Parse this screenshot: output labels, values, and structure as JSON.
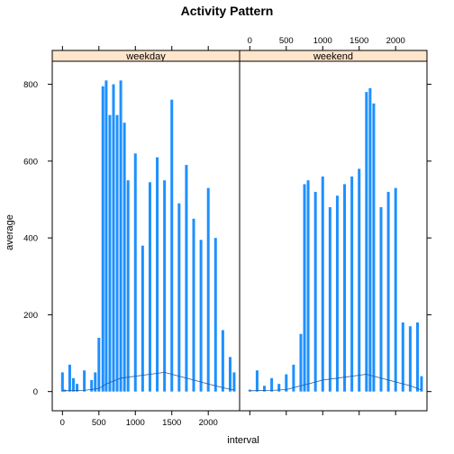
{
  "chart_data": {
    "type": "bar",
    "title": "Activity Pattern",
    "xlabel": "interval",
    "ylabel": "average",
    "xlim": [
      -140,
      2430
    ],
    "ylim": [
      -50,
      860
    ],
    "x_ticks": [
      0,
      500,
      1000,
      1500,
      2000
    ],
    "y_ticks": [
      0,
      200,
      400,
      600,
      800
    ],
    "bar_color": "#1e90ff",
    "strip_color": "#ffe5cc",
    "panels": [
      {
        "name": "weekday",
        "series": [
          {
            "x": [
              0,
              30,
              100,
              150,
              200,
              300,
              400,
              450,
              500,
              555,
              600,
              650,
              700,
              750,
              800,
              850,
              900,
              1000,
              1100,
              1200,
              1300,
              1400,
              1500,
              1600,
              1700,
              1800,
              1900,
              2000,
              2100,
              2200,
              2300,
              2355
            ],
            "values": [
              50,
              5,
              70,
              35,
              20,
              55,
              30,
              50,
              140,
              795,
              810,
              720,
              800,
              720,
              810,
              700,
              550,
              620,
              380,
              545,
              610,
              550,
              760,
              490,
              590,
              450,
              395,
              530,
              400,
              160,
              90,
              50
            ]
          }
        ],
        "line": {
          "x": [
            0,
            300,
            500,
            600,
            800,
            1000,
            1200,
            1400,
            1600,
            1800,
            2000,
            2200,
            2355
          ],
          "values": [
            2,
            3,
            8,
            20,
            35,
            40,
            45,
            50,
            40,
            30,
            20,
            10,
            4
          ]
        }
      },
      {
        "name": "weekend",
        "series": [
          {
            "x": [
              0,
              100,
              200,
              300,
              400,
              500,
              600,
              700,
              750,
              800,
              900,
              1000,
              1100,
              1200,
              1300,
              1400,
              1500,
              1600,
              1650,
              1700,
              1800,
              1900,
              2000,
              2100,
              2200,
              2300,
              2355
            ],
            "values": [
              5,
              55,
              15,
              35,
              20,
              45,
              70,
              150,
              540,
              550,
              520,
              560,
              480,
              510,
              540,
              560,
              580,
              780,
              790,
              750,
              480,
              520,
              530,
              180,
              170,
              180,
              40
            ]
          }
        ],
        "line": {
          "x": [
            0,
            300,
            500,
            700,
            800,
            1000,
            1200,
            1400,
            1600,
            1800,
            2000,
            2200,
            2355
          ],
          "values": [
            2,
            3,
            5,
            15,
            20,
            30,
            35,
            40,
            45,
            35,
            25,
            15,
            4
          ]
        }
      }
    ]
  }
}
